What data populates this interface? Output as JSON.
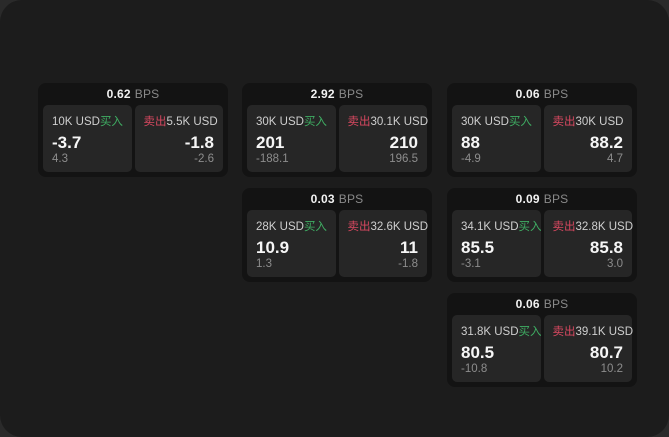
{
  "labels": {
    "bps": "BPS",
    "buy": "买入",
    "sell": "卖出"
  },
  "colors": {
    "buy": "#3fae63",
    "sell": "#d84860",
    "window_bg": "#1c1c1c",
    "card_bg": "#131313",
    "panel_bg": "#262626"
  },
  "columns": [
    {
      "cards": [
        {
          "bps": "0.62",
          "buy": {
            "amount": "10K USD",
            "price": "-3.7",
            "delta": "4.3"
          },
          "sell": {
            "amount": "5.5K USD",
            "price": "-1.8",
            "delta": "-2.6"
          }
        }
      ]
    },
    {
      "cards": [
        {
          "bps": "2.92",
          "buy": {
            "amount": "30K USD",
            "price": "201",
            "delta": "-188.1"
          },
          "sell": {
            "amount": "30.1K USD",
            "price": "210",
            "delta": "196.5"
          }
        },
        {
          "bps": "0.03",
          "buy": {
            "amount": "28K USD",
            "price": "10.9",
            "delta": "1.3"
          },
          "sell": {
            "amount": "32.6K USD",
            "price": "11",
            "delta": "-1.8"
          }
        }
      ]
    },
    {
      "cards": [
        {
          "bps": "0.06",
          "buy": {
            "amount": "30K USD",
            "price": "88",
            "delta": "-4.9"
          },
          "sell": {
            "amount": "30K USD",
            "price": "88.2",
            "delta": "4.7"
          }
        },
        {
          "bps": "0.09",
          "buy": {
            "amount": "34.1K USD",
            "price": "85.5",
            "delta": "-3.1"
          },
          "sell": {
            "amount": "32.8K USD",
            "price": "85.8",
            "delta": "3.0"
          }
        },
        {
          "bps": "0.06",
          "buy": {
            "amount": "31.8K USD",
            "price": "80.5",
            "delta": "-10.8"
          },
          "sell": {
            "amount": "39.1K USD",
            "price": "80.7",
            "delta": "10.2"
          }
        }
      ]
    }
  ]
}
